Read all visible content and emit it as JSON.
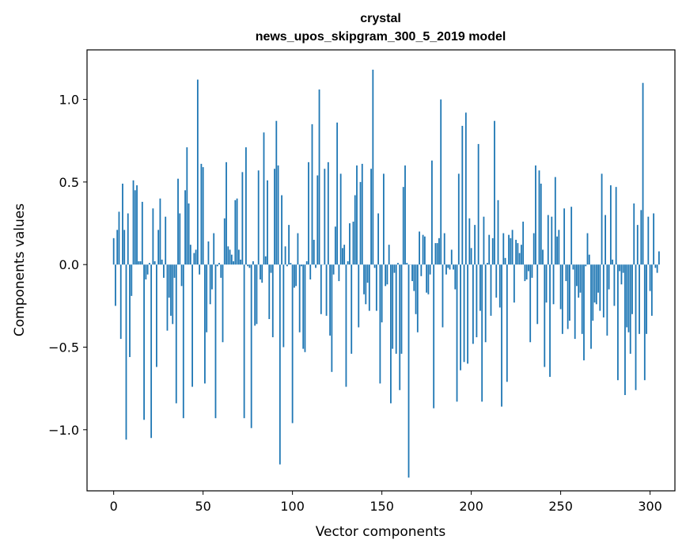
{
  "chart_data": {
    "type": "bar",
    "title": "crystal",
    "subtitle": "news_upos_skipgram_300_5_2019 model",
    "xlabel": "Vector components",
    "ylabel": "Components values",
    "xlim": [
      -14.9,
      313.9
    ],
    "ylim": [
      -1.37,
      1.3
    ],
    "xticks": [
      0,
      50,
      100,
      150,
      200,
      250,
      300
    ],
    "yticks": [
      -1.0,
      -0.5,
      0.0,
      0.5,
      1.0
    ],
    "ytick_labels": [
      "−1.0",
      "−0.5",
      "0.0",
      "0.5",
      "1.0"
    ],
    "xtick_labels": [
      "0",
      "50",
      "100",
      "150",
      "200",
      "250",
      "300"
    ],
    "bar_color": "#1f77b4",
    "values": [
      0.16,
      -0.25,
      0.21,
      0.32,
      -0.45,
      0.49,
      0.21,
      -1.06,
      0.31,
      -0.56,
      -0.19,
      0.51,
      0.45,
      0.48,
      0.02,
      0.02,
      0.38,
      -0.94,
      -0.09,
      -0.06,
      0.01,
      -1.05,
      0.34,
      0.02,
      -0.62,
      0.21,
      0.4,
      0.03,
      -0.08,
      0.29,
      -0.4,
      -0.2,
      -0.31,
      -0.36,
      -0.08,
      -0.84,
      0.52,
      0.31,
      -0.13,
      -0.93,
      0.45,
      0.71,
      0.37,
      0.12,
      -0.74,
      0.07,
      0.09,
      1.12,
      -0.06,
      0.61,
      0.59,
      -0.72,
      -0.41,
      0.14,
      -0.24,
      -0.15,
      0.19,
      -0.93,
      -0.01,
      0.01,
      -0.08,
      -0.47,
      0.28,
      0.62,
      0.11,
      0.09,
      0.06,
      0.02,
      0.39,
      0.4,
      0.09,
      0.03,
      0.56,
      -0.93,
      0.71,
      -0.01,
      -0.02,
      -0.99,
      0.02,
      -0.37,
      -0.36,
      0.57,
      -0.09,
      -0.11,
      0.8,
      0.05,
      0.51,
      -0.33,
      -0.05,
      -0.44,
      0.58,
      0.87,
      0.6,
      -1.21,
      0.42,
      -0.5,
      0.11,
      -0.01,
      0.24,
      0.01,
      -0.96,
      -0.14,
      -0.13,
      0.19,
      -0.41,
      -0.01,
      -0.51,
      -0.53,
      0.02,
      0.62,
      -0.09,
      0.85,
      0.15,
      -0.02,
      0.54,
      1.06,
      -0.3,
      0.0,
      0.58,
      -0.31,
      0.62,
      -0.43,
      -0.65,
      -0.06,
      0.23,
      0.86,
      -0.1,
      0.55,
      0.1,
      0.12,
      -0.74,
      0.02,
      0.25,
      -0.54,
      0.26,
      0.42,
      0.6,
      -0.38,
      0.5,
      0.61,
      -0.18,
      -0.24,
      -0.11,
      -0.28,
      0.58,
      1.18,
      -0.02,
      -0.28,
      0.31,
      -0.72,
      -0.35,
      0.55,
      -0.13,
      -0.12,
      0.12,
      -0.84,
      -0.51,
      -0.05,
      -0.54,
      0.01,
      -0.76,
      -0.54,
      0.47,
      0.6,
      0.01,
      -1.29,
      0.0,
      -0.1,
      -0.16,
      -0.3,
      -0.41,
      0.2,
      -0.07,
      0.18,
      0.17,
      -0.17,
      -0.18,
      -0.06,
      0.63,
      -0.87,
      0.13,
      0.13,
      0.16,
      1.0,
      -0.38,
      0.19,
      -0.06,
      -0.02,
      -0.03,
      0.09,
      -0.03,
      -0.15,
      -0.83,
      0.55,
      -0.64,
      0.84,
      -0.59,
      0.92,
      -0.6,
      0.28,
      0.1,
      -0.48,
      0.24,
      -0.44,
      0.73,
      -0.28,
      -0.83,
      0.29,
      -0.47,
      0.01,
      0.18,
      -0.31,
      0.16,
      0.87,
      -0.2,
      0.39,
      -0.26,
      -0.86,
      0.19,
      0.04,
      -0.71,
      0.18,
      0.16,
      0.21,
      -0.23,
      0.15,
      0.13,
      0.07,
      0.12,
      0.26,
      -0.1,
      -0.09,
      -0.04,
      -0.47,
      -0.08,
      0.19,
      0.6,
      -0.36,
      0.57,
      0.49,
      0.09,
      -0.62,
      -0.23,
      0.3,
      -0.68,
      0.29,
      -0.24,
      0.53,
      0.17,
      0.21,
      -0.27,
      -0.42,
      0.34,
      -0.1,
      -0.39,
      -0.34,
      0.35,
      -0.03,
      -0.45,
      -0.13,
      -0.2,
      -0.17,
      -0.42,
      -0.58,
      -0.01,
      0.19,
      0.06,
      -0.51,
      -0.34,
      -0.23,
      -0.24,
      -0.17,
      -0.28,
      0.55,
      -0.32,
      0.3,
      -0.43,
      -0.15,
      0.48,
      0.03,
      -0.25,
      0.47,
      -0.7,
      -0.04,
      -0.12,
      -0.05,
      -0.79,
      -0.38,
      -0.41,
      -0.54,
      -0.3,
      0.37,
      -0.76,
      0.24,
      -0.42,
      0.33,
      1.1,
      -0.7,
      -0.42,
      0.29,
      -0.16,
      -0.31,
      0.31,
      -0.02,
      -0.05,
      0.08
    ]
  }
}
